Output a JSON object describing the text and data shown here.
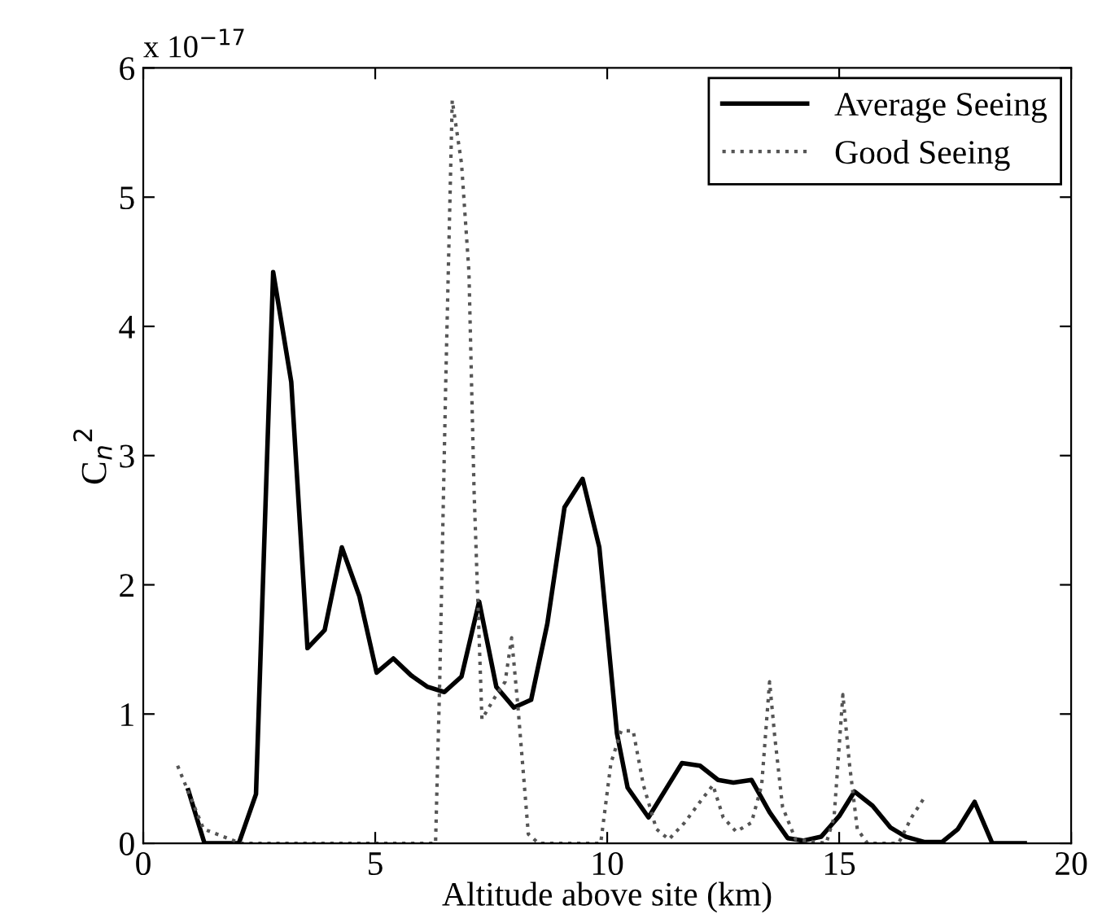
{
  "chart_data": {
    "type": "line",
    "xlabel": "Altitude above site (km)",
    "ylabel": "C$_{n}$$^{2}$",
    "annotations": [
      "x 10$^{−17}$"
    ],
    "xlim": [
      0,
      20
    ],
    "xticks": [
      0,
      5,
      10,
      15,
      20
    ],
    "ylim": [
      0,
      6
    ],
    "yticks": [
      0,
      1,
      2,
      3,
      4,
      5,
      6
    ],
    "grid": false,
    "legend": "top right",
    "marker": "none",
    "series": [
      {
        "name": "Average Seeing",
        "color": "#000000",
        "line_style": "solid",
        "x": [
          0.97,
          1.32,
          2.06,
          2.43,
          2.8,
          3.19,
          3.54,
          3.91,
          4.28,
          4.66,
          5.03,
          5.39,
          5.77,
          6.13,
          6.49,
          6.86,
          7.24,
          7.61,
          7.99,
          8.36,
          8.71,
          9.08,
          9.47,
          9.83,
          10.21,
          10.44,
          10.89,
          11.61,
          12.0,
          12.39,
          12.72,
          13.11,
          13.5,
          13.89,
          14.22,
          14.61,
          15.0,
          15.33,
          15.72,
          16.11,
          16.44,
          16.83,
          17.22,
          17.56,
          17.92,
          18.3,
          19.0
        ],
        "values": [
          0.41,
          0.0,
          0.0,
          0.38,
          4.42,
          3.57,
          1.51,
          1.65,
          2.29,
          1.91,
          1.32,
          1.43,
          1.3,
          1.21,
          1.17,
          1.29,
          1.87,
          1.21,
          1.05,
          1.11,
          1.7,
          2.6,
          2.82,
          2.29,
          0.85,
          0.43,
          0.2,
          0.62,
          0.6,
          0.49,
          0.47,
          0.49,
          0.24,
          0.04,
          0.02,
          0.05,
          0.21,
          0.4,
          0.29,
          0.12,
          0.05,
          0.01,
          0.01,
          0.11,
          0.32,
          0.0,
          0.0
        ]
      },
      {
        "name": "Good Seeing",
        "color": "#555555",
        "line_style": "dotted",
        "x": [
          0.74,
          1.3,
          2.1,
          6.3,
          6.39,
          6.52,
          6.66,
          6.86,
          7.02,
          7.13,
          7.3,
          7.58,
          7.8,
          7.94,
          8.08,
          8.3,
          8.52,
          9.86,
          10.08,
          10.3,
          10.56,
          10.78,
          11.06,
          11.33,
          11.67,
          12.0,
          12.28,
          12.5,
          12.78,
          13.11,
          13.33,
          13.5,
          13.61,
          13.78,
          14.06,
          14.72,
          14.89,
          15.08,
          15.22,
          15.39,
          15.61,
          16.28,
          16.56,
          16.83
        ],
        "values": [
          0.6,
          0.11,
          0.0,
          0.0,
          1.25,
          3.57,
          5.75,
          5.26,
          4.42,
          2.73,
          0.96,
          1.13,
          1.25,
          1.59,
          1.04,
          0.07,
          0.0,
          0.0,
          0.62,
          0.87,
          0.87,
          0.45,
          0.11,
          0.03,
          0.16,
          0.32,
          0.45,
          0.2,
          0.09,
          0.16,
          0.45,
          1.25,
          0.83,
          0.28,
          0.03,
          0.0,
          0.2,
          1.15,
          0.62,
          0.11,
          0.0,
          0.0,
          0.2,
          0.35
        ]
      }
    ]
  }
}
